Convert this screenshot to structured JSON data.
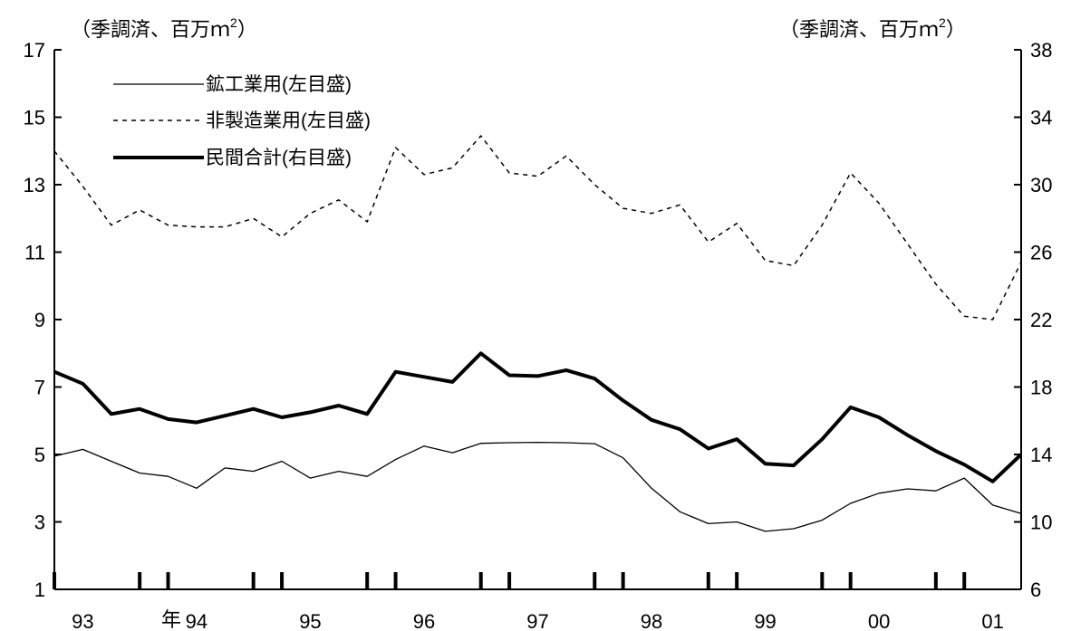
{
  "chart_data": {
    "type": "line",
    "left_axis": {
      "unit_label": "（季調済、百万ｍ",
      "unit_superscript": "2",
      "unit_close": "）",
      "ylim": [
        1,
        17
      ],
      "ticks": [
        "1",
        "3",
        "5",
        "7",
        "9",
        "11",
        "13",
        "15",
        "17"
      ]
    },
    "right_axis": {
      "unit_label": "（季調済、百万ｍ",
      "unit_superscript": "2",
      "unit_close": "）",
      "ylim": [
        6,
        38
      ],
      "ticks": [
        "6",
        "10",
        "14",
        "18",
        "22",
        "26",
        "30",
        "34",
        "38"
      ]
    },
    "x_axis": {
      "label": "年",
      "year_labels": [
        {
          "text": "93",
          "at": 1
        },
        {
          "text": "94",
          "at": 5
        },
        {
          "text": "95",
          "at": 9
        },
        {
          "text": "96",
          "at": 13
        },
        {
          "text": "97",
          "at": 17
        },
        {
          "text": "98",
          "at": 21
        },
        {
          "text": "99",
          "at": 25
        },
        {
          "text": "00",
          "at": 29
        },
        {
          "text": "01",
          "at": 33
        }
      ],
      "period_start": 0,
      "period_end": 34,
      "marker_positions": [
        0,
        3,
        4,
        7,
        8,
        11,
        12,
        15,
        16,
        19,
        20,
        23,
        24,
        27,
        28,
        31,
        32
      ]
    },
    "series": [
      {
        "name": "鉱工業用(左目盛)",
        "axis": "left",
        "style": "thin",
        "color": "#000000",
        "values": [
          4.95,
          5.15,
          4.8,
          4.45,
          4.35,
          4.0,
          4.6,
          4.5,
          4.8,
          4.3,
          4.5,
          4.35,
          4.85,
          5.25,
          5.05,
          5.33,
          5.35,
          5.36,
          5.35,
          5.32,
          4.9,
          4.0,
          3.3,
          2.95,
          3.0,
          2.72,
          2.8,
          3.05,
          3.55,
          3.85,
          3.98,
          3.92,
          4.3,
          3.5,
          3.25
        ]
      },
      {
        "name": "非製造業用(左目盛)",
        "axis": "left",
        "style": "dotted",
        "color": "#000000",
        "values": [
          14.0,
          12.95,
          11.8,
          12.25,
          11.8,
          11.75,
          11.75,
          12.0,
          11.45,
          12.15,
          12.55,
          11.9,
          14.1,
          13.3,
          13.5,
          14.45,
          13.35,
          13.25,
          13.85,
          13.0,
          12.3,
          12.15,
          12.4,
          11.3,
          11.85,
          10.75,
          10.6,
          11.8,
          13.35,
          12.45,
          11.25,
          10.05,
          9.1,
          9.0,
          10.7
        ]
      },
      {
        "name": "民間合計(右目盛)",
        "axis": "right",
        "style": "thick",
        "color": "#000000",
        "values": [
          18.9,
          18.2,
          16.4,
          16.7,
          16.1,
          15.9,
          16.3,
          16.7,
          16.2,
          16.5,
          16.9,
          16.4,
          18.9,
          18.6,
          18.3,
          20.0,
          18.7,
          18.65,
          19.0,
          18.5,
          17.2,
          16.05,
          15.5,
          14.35,
          14.9,
          13.45,
          13.35,
          14.9,
          16.8,
          16.2,
          15.15,
          14.2,
          13.4,
          12.4,
          14.0
        ]
      }
    ],
    "grid": false,
    "legend": "top-left"
  }
}
